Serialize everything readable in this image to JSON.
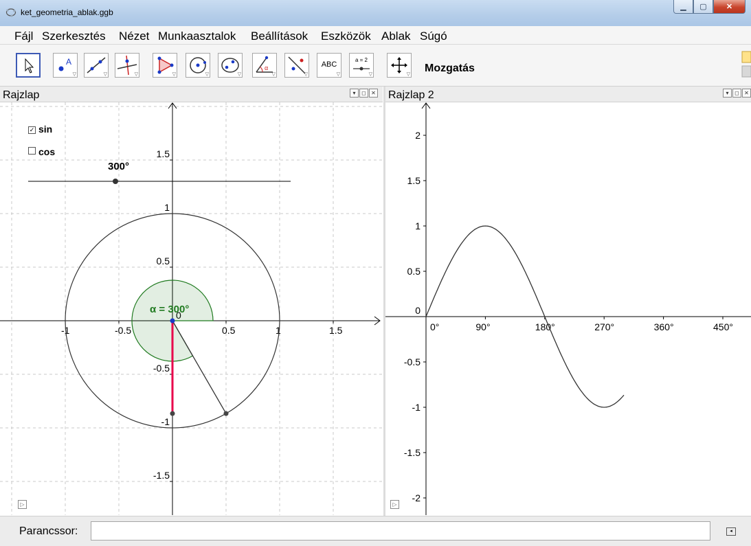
{
  "window": {
    "title": "ket_geometria_ablak.ggb",
    "controls": [
      "minimize",
      "maximize",
      "close"
    ]
  },
  "menu": [
    "Fájl",
    "Szerkesztés",
    "Nézet",
    "Munkaasztalok",
    "Beállítások",
    "Eszközök",
    "Ablak",
    "Súgó"
  ],
  "toolbar": {
    "tools": [
      {
        "icon": "move-pointer-icon"
      },
      {
        "icon": "point-icon"
      },
      {
        "icon": "line-icon"
      },
      {
        "icon": "perpendicular-line-icon"
      },
      {
        "icon": "polygon-icon"
      },
      {
        "icon": "circle-center-icon"
      },
      {
        "icon": "ellipse-icon"
      },
      {
        "icon": "angle-icon"
      },
      {
        "icon": "reflect-icon"
      },
      {
        "icon": "text-icon",
        "label": "ABC"
      },
      {
        "icon": "slider-icon",
        "label": "a = 2"
      },
      {
        "icon": "move-view-icon"
      }
    ],
    "selected_tool_name": "Mozgatás"
  },
  "graphics1": {
    "title": "Rajzlap",
    "checkboxes": [
      {
        "label": "sin",
        "checked": true
      },
      {
        "label": "cos",
        "checked": false
      }
    ],
    "slider": {
      "value_label": "300°",
      "value": 300
    },
    "angle_label": "α = 300°",
    "angle_deg": 300,
    "x_ticks": [
      "-1",
      "-0.5",
      "0",
      "0.5",
      "1",
      "1.5"
    ],
    "y_ticks": [
      "1.5",
      "1",
      "0.5",
      "0",
      "-0.5",
      "-1",
      "-1.5"
    ],
    "colors": {
      "angle": "#1f7a1f",
      "sine_segment": "#e8004b",
      "point": "#1a3ac7"
    }
  },
  "graphics2": {
    "title": "Rajzlap 2",
    "x_ticks": [
      "0°",
      "90°",
      "180°",
      "270°",
      "360°",
      "450°"
    ],
    "y_ticks": [
      "2",
      "1.5",
      "1",
      "0.5",
      "0",
      "-0.5",
      "-1",
      "-1.5",
      "-2"
    ],
    "curve": {
      "function": "sin(x)",
      "x_start_deg": 0,
      "x_end_deg": 300
    }
  },
  "input_bar": {
    "label": "Parancssor:",
    "value": ""
  }
}
